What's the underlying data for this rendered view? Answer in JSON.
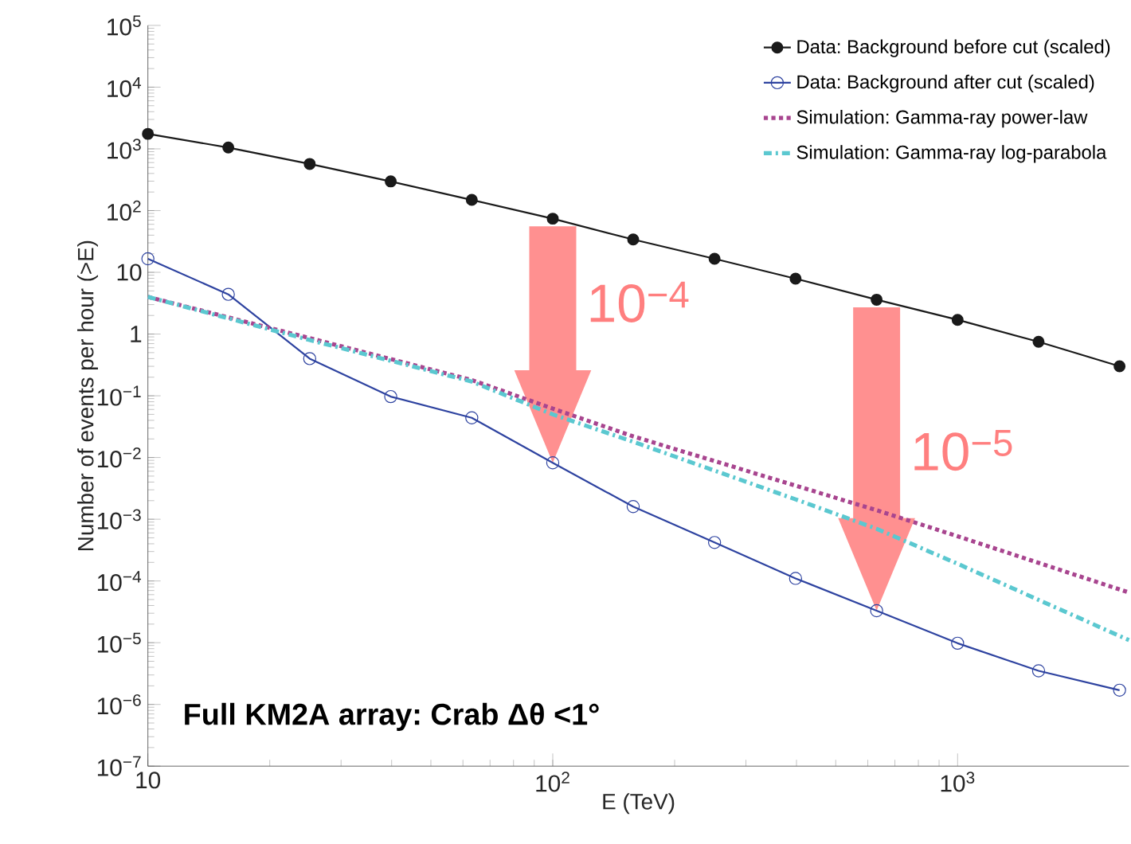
{
  "chart_data": {
    "type": "line",
    "xlabel": "E (TeV)",
    "ylabel": "Number of events per hour (>E)",
    "log": "xy",
    "xlim": [
      10,
      2650
    ],
    "ylim": [
      1e-07,
      100000.0
    ],
    "xticks": [
      {
        "value": 10,
        "label": "10"
      },
      {
        "value": 100,
        "label": "10$^{2}$"
      },
      {
        "value": 1000,
        "label": "10$^{3}$"
      }
    ],
    "yticks": [
      {
        "value": 1e-07,
        "label": "10$^{−7}$"
      },
      {
        "value": 1e-06,
        "label": "10$^{−6}$"
      },
      {
        "value": 1e-05,
        "label": "10$^{−5}$"
      },
      {
        "value": 0.0001,
        "label": "10$^{−4}$"
      },
      {
        "value": 0.001,
        "label": "10$^{−3}$"
      },
      {
        "value": 0.01,
        "label": "10$^{−2}$"
      },
      {
        "value": 0.1,
        "label": "10$^{−1}$"
      },
      {
        "value": 1,
        "label": "1"
      },
      {
        "value": 10,
        "label": "10"
      },
      {
        "value": 100,
        "label": "10$^{2}$"
      },
      {
        "value": 1000,
        "label": "10$^{3}$"
      },
      {
        "value": 10000,
        "label": "10$^{4}$"
      },
      {
        "value": 100000,
        "label": "10$^{5}$"
      }
    ],
    "grid": false,
    "legend": "top right",
    "x": [
      10,
      15.8,
      25.1,
      39.8,
      63.1,
      100,
      158,
      251,
      398,
      631,
      1000,
      1585,
      2512
    ],
    "series": [
      {
        "name": "Data: Background before cut (scaled)",
        "color": "#1a1a1a",
        "marker": "circle",
        "line_style": "solid",
        "values": [
          1750,
          1050,
          570,
          297,
          149,
          74,
          34,
          16.6,
          7.9,
          3.6,
          1.7,
          0.75,
          0.3
        ]
      },
      {
        "name": "Data: Background after cut (scaled)",
        "color": "#2e43a0",
        "marker": "circle",
        "line_style": "solid",
        "values": [
          16.6,
          4.4,
          0.4,
          0.097,
          0.044,
          0.0082,
          0.0016,
          0.00042,
          0.00011,
          3.3e-05,
          9.8e-06,
          3.5e-06,
          1.7e-06
        ]
      },
      {
        "name": "Simulation: Gamma-ray power-law",
        "color": "#a8458f",
        "marker": "none",
        "line_style": "dotted",
        "x": [
          10,
          25.1,
          63.1,
          100,
          158,
          398,
          631,
          1000,
          2650
        ],
        "values": [
          4.0,
          0.86,
          0.18,
          0.062,
          0.022,
          0.0035,
          0.0014,
          0.00053,
          6.5e-05
        ]
      },
      {
        "name": "Simulation: Gamma-ray log-parabola",
        "color": "#5bc8d0",
        "marker": "none",
        "line_style": "dashdotted",
        "x": [
          10,
          25.1,
          63.1,
          100,
          158,
          398,
          631,
          1000,
          2650
        ],
        "values": [
          4.0,
          0.8,
          0.17,
          0.05,
          0.018,
          0.0021,
          0.0007,
          0.00019,
          1.1e-05
        ]
      }
    ],
    "annotations": [
      {
        "text": "10$^{−4}$",
        "x": 100,
        "y": 74
      },
      {
        "text": "10$^{−5}$",
        "x": 631,
        "y": 3.6
      },
      "**Full KM2A array: Crab Δθ <1°**"
    ]
  }
}
